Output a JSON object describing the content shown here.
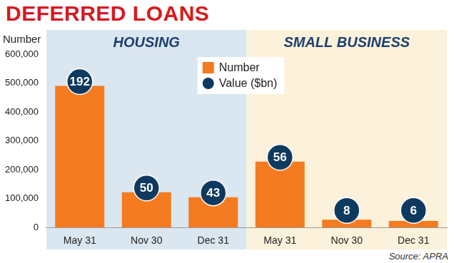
{
  "chart_data": {
    "type": "bar",
    "title": "DEFERRED LOANS",
    "y_label": "Number",
    "source": "Source: APRA",
    "groups": [
      {
        "title": "HOUSING",
        "color": "#dae6f0",
        "categories": [
          "May 31",
          "Nov 30",
          "Dec 31"
        ]
      },
      {
        "title": "SMALL BUSINESS",
        "color": "#fcf1da",
        "categories": [
          "May 31",
          "Nov 30",
          "Dec 31"
        ]
      }
    ],
    "series": [
      {
        "name": "Number",
        "color": "#f47b20",
        "values": [
          490000,
          122000,
          105000,
          228000,
          27000,
          23000
        ]
      },
      {
        "name": "Value ($bn)",
        "marker": "circle",
        "color": "#0f3a5f",
        "values": [
          192,
          50,
          43,
          56,
          8,
          6
        ]
      }
    ],
    "ylim": [
      0,
      600000
    ],
    "yticks": [
      0,
      {
        "value": 100000,
        "label": "100,000"
      },
      {
        "value": 200000,
        "label": "200,000"
      },
      {
        "value": 300000,
        "label": "300,000"
      },
      {
        "value": 400000,
        "label": "400,000"
      },
      {
        "value": 500000,
        "label": "500,000"
      },
      {
        "value": 600000,
        "label": "600,000"
      }
    ],
    "grid": false,
    "legend": "upper center"
  }
}
